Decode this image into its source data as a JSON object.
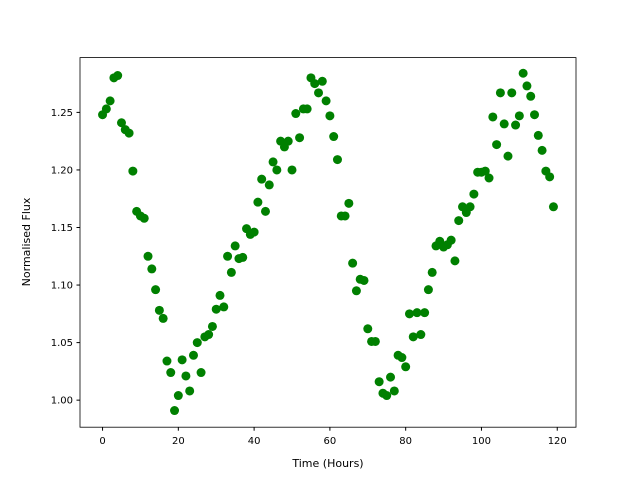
{
  "chart_data": {
    "type": "scatter",
    "x_label": "Time (Hours)",
    "y_label": "Normalised Flux",
    "color": "#008000",
    "x": [
      0,
      1,
      2,
      3,
      4,
      5,
      6,
      7,
      8,
      9,
      10,
      11,
      12,
      13,
      14,
      15,
      16,
      17,
      18,
      19,
      20,
      21,
      22,
      23,
      24,
      25,
      26,
      27,
      28,
      29,
      30,
      31,
      32,
      33,
      34,
      35,
      36,
      37,
      38,
      39,
      40,
      41,
      42,
      43,
      44,
      45,
      46,
      47,
      48,
      49,
      50,
      51,
      52,
      53,
      54,
      55,
      56,
      57,
      58,
      59,
      60,
      61,
      62,
      63,
      64,
      65,
      66,
      67,
      68,
      69,
      70,
      71,
      72,
      73,
      74,
      75,
      76,
      77,
      78,
      79,
      80,
      81,
      82,
      83,
      84,
      85,
      86,
      87,
      88,
      89,
      90,
      91,
      92,
      93,
      94,
      95,
      96,
      97,
      98,
      99,
      100,
      101,
      102,
      103,
      104,
      105,
      106,
      107,
      108,
      109,
      110,
      111,
      112,
      113,
      114,
      115,
      116,
      117,
      118,
      119
    ],
    "y": [
      1.248,
      1.253,
      1.26,
      1.28,
      1.282,
      1.241,
      1.235,
      1.232,
      1.199,
      1.164,
      1.16,
      1.158,
      1.125,
      1.114,
      1.096,
      1.078,
      1.071,
      1.034,
      1.024,
      0.991,
      1.004,
      1.035,
      1.021,
      1.008,
      1.039,
      1.05,
      1.024,
      1.055,
      1.057,
      1.064,
      1.079,
      1.091,
      1.081,
      1.125,
      1.111,
      1.134,
      1.123,
      1.124,
      1.149,
      1.144,
      1.146,
      1.172,
      1.192,
      1.164,
      1.187,
      1.207,
      1.2,
      1.225,
      1.22,
      1.225,
      1.2,
      1.249,
      1.228,
      1.253,
      1.253,
      1.28,
      1.275,
      1.267,
      1.277,
      1.26,
      1.247,
      1.229,
      1.209,
      1.16,
      1.16,
      1.171,
      1.119,
      1.095,
      1.105,
      1.104,
      1.062,
      1.051,
      1.051,
      1.016,
      1.006,
      1.004,
      1.02,
      1.008,
      1.039,
      1.037,
      1.029,
      1.075,
      1.055,
      1.076,
      1.057,
      1.076,
      1.096,
      1.111,
      1.134,
      1.138,
      1.133,
      1.135,
      1.139,
      1.121,
      1.156,
      1.168,
      1.163,
      1.168,
      1.179,
      1.198,
      1.198,
      1.199,
      1.193,
      1.246,
      1.222,
      1.267,
      1.24,
      1.212,
      1.267,
      1.239,
      1.247,
      1.284,
      1.273,
      1.264,
      1.248,
      1.23,
      1.217,
      1.199,
      1.194,
      1.168
    ],
    "xlim": [
      -5.95,
      124.95
    ],
    "ylim": [
      0.9765,
      1.2976
    ],
    "xticks": [
      0,
      20,
      40,
      60,
      80,
      100,
      120
    ],
    "yticks": [
      {
        "value": 1.0,
        "label": "1.00"
      },
      1.05,
      {
        "value": 1.1,
        "label": "1.10"
      },
      1.15,
      {
        "value": 1.2,
        "label": "1.20"
      },
      1.25
    ]
  }
}
